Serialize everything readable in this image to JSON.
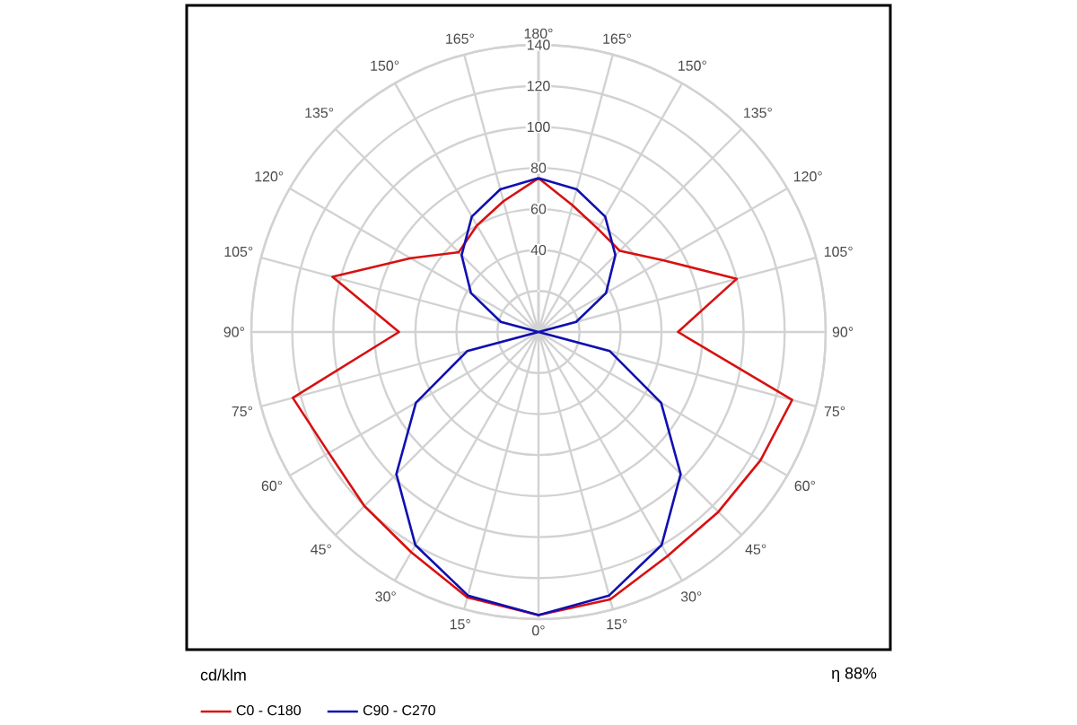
{
  "chart_data": {
    "type": "radar",
    "categories": [
      "180°",
      "165°",
      "150°",
      "135°",
      "120°",
      "105°",
      "90°",
      "75°",
      "60°",
      "45°",
      "30°",
      "15°",
      "0°",
      "15°",
      "30°",
      "45°",
      "60°",
      "75°",
      "90°",
      "105°",
      "120°",
      "135°",
      "150°",
      "165°"
    ],
    "series": [
      {
        "name": "C0 - C180",
        "color": "#d81010",
        "values": [
          75,
          64,
          58,
          56,
          70,
          100,
          68,
          128,
          125,
          124,
          126,
          135,
          138,
          134,
          124,
          120,
          118,
          124,
          68,
          104,
          72,
          55,
          60,
          66
        ]
      },
      {
        "name": "C90 - C270",
        "color": "#1010b0",
        "values": [
          75,
          72,
          65,
          53,
          38,
          19,
          0,
          36,
          69,
          98,
          120,
          133,
          138,
          133,
          120,
          98,
          69,
          36,
          0,
          19,
          38,
          53,
          65,
          72
        ]
      }
    ],
    "ylim": [
      0,
      140
    ],
    "yticks": [
      40,
      60,
      80,
      100,
      120,
      140
    ],
    "grid": true,
    "legend": "bottom left",
    "annotations": [
      "cd/klm",
      "η 88%"
    ]
  }
}
